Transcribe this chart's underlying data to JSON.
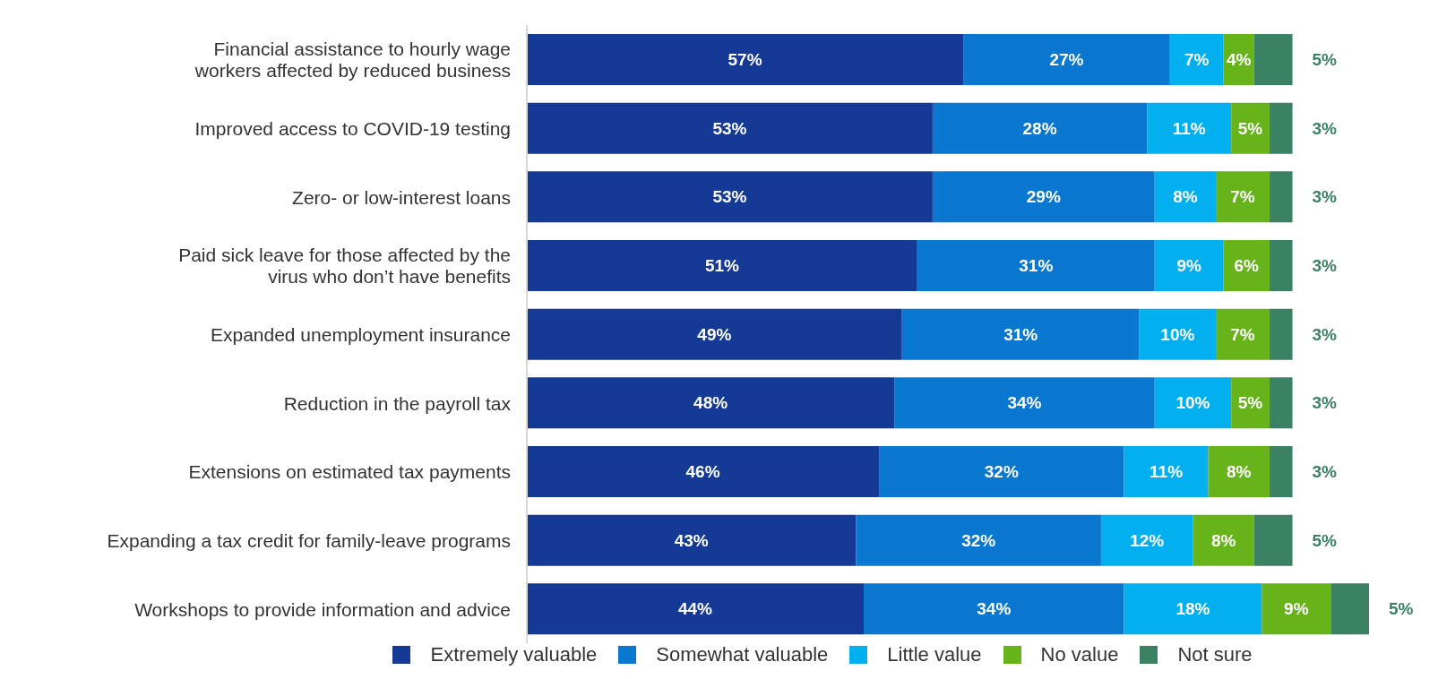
{
  "chart_data": {
    "type": "bar",
    "orientation": "horizontal",
    "stacked": true,
    "legend": "bottom",
    "grid": false,
    "categories": [
      "Financial assistance to hourly wage\nworkers affected by reduced business",
      "Improved access to COVID-19 testing",
      "Zero- or low-interest loans",
      "Paid sick leave for those affected by the\nvirus who don’t have benefits",
      "Expanded unemployment insurance",
      "Reduction in the payroll tax",
      "Extensions on estimated tax payments",
      "Expanding a tax credit for family-leave programs",
      "Workshops to provide information and advice"
    ],
    "series": [
      {
        "name": "Extremely valuable",
        "color": "#153a96",
        "values": [
          57,
          53,
          53,
          51,
          49,
          48,
          46,
          43,
          44
        ],
        "value_labels": [
          "57%",
          "53%",
          "53%",
          "51%",
          "49%",
          "48%",
          "46%",
          "43%",
          "44%"
        ]
      },
      {
        "name": "Somewhat valuable",
        "color": "#0a77d0",
        "values": [
          27,
          28,
          29,
          31,
          31,
          34,
          32,
          32,
          34
        ],
        "value_labels": [
          "27%",
          "28%",
          "29%",
          "31%",
          "31%",
          "34%",
          "32%",
          "32%",
          "34%"
        ]
      },
      {
        "name": "Little value",
        "color": "#03b0ef",
        "values": [
          7,
          11,
          8,
          9,
          10,
          10,
          11,
          12,
          18
        ],
        "value_labels": [
          "7%",
          "11%",
          "8%",
          "9%",
          "10%",
          "10%",
          "11%",
          "12%",
          "18%"
        ]
      },
      {
        "name": "No value",
        "color": "#66b31a",
        "values": [
          4,
          5,
          7,
          6,
          7,
          5,
          8,
          8,
          9
        ],
        "value_labels": [
          "4%",
          "5%",
          "7%",
          "6%",
          "7%",
          "5%",
          "8%",
          "8%",
          "9%"
        ]
      },
      {
        "name": "Not sure",
        "color": "#3a8263",
        "values": [
          5,
          3,
          3,
          3,
          3,
          3,
          3,
          5,
          5
        ],
        "value_labels": [
          "5%",
          "3%",
          "3%",
          "3%",
          "3%",
          "3%",
          "3%",
          "5%",
          "5%"
        ]
      }
    ]
  }
}
